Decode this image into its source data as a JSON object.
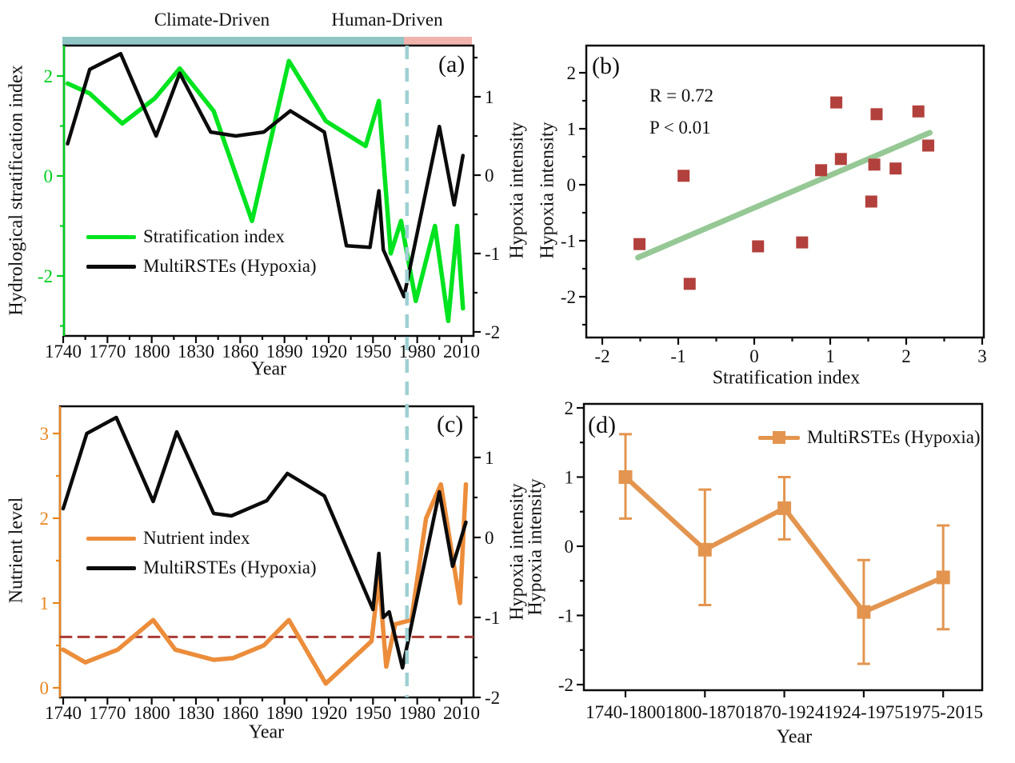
{
  "colors": {
    "green": "#00e31f",
    "black": "#0b0b0b",
    "orange": "#ec8d3b",
    "orange_d": "#e3954f",
    "brick": "#b2403c",
    "trend_green": "#96c896",
    "teal_bar": "#90c6c6",
    "pink_bar": "#f0b4ad",
    "teal_dash": "#9ed0d2",
    "dark_red_dash": "#a93a35",
    "axis_green": "#00cf1d",
    "axis_orange": "#e8861f"
  },
  "top_bars": {
    "climate_label": "Climate-Driven",
    "human_label": "Human-Driven"
  },
  "vline_year": 1973,
  "chart_data": [
    {
      "panel": "a",
      "type": "line",
      "panel_letter": "(a)",
      "xlabel": "Year",
      "ylabel_left": "Hydrological stratification index",
      "ylabel_right": "Hypoxia intensity",
      "xlim": [
        1740,
        2018
      ],
      "ylim_left": [
        -3.2,
        2.6
      ],
      "ylim_right": [
        -2.0,
        1.65
      ],
      "xticks": [
        1740,
        1770,
        1800,
        1830,
        1860,
        1890,
        1920,
        1950,
        1980,
        2010
      ],
      "yticks_left": [
        2,
        0,
        -2
      ],
      "yticks_left_minor": [
        1,
        -1,
        -3
      ],
      "yticks_right": [
        1,
        0,
        -1,
        -2
      ],
      "yticks_right_minor": [
        1.5,
        0.5,
        -0.5,
        -1.5
      ],
      "legend_position": "center-left",
      "series": [
        {
          "name": "Stratification index",
          "axis": "left",
          "color_key": "green",
          "points": [
            [
              1743,
              1.85
            ],
            [
              1758,
              1.65
            ],
            [
              1780,
              1.05
            ],
            [
              1802,
              1.55
            ],
            [
              1819,
              2.15
            ],
            [
              1842,
              1.3
            ],
            [
              1868,
              -0.9
            ],
            [
              1893,
              2.3
            ],
            [
              1918,
              1.1
            ],
            [
              1945,
              0.6
            ],
            [
              1954,
              1.5
            ],
            [
              1962,
              -1.55
            ],
            [
              1969,
              -0.9
            ],
            [
              1979,
              -2.5
            ],
            [
              1992,
              -1.0
            ],
            [
              2001,
              -2.9
            ],
            [
              2007,
              -1.0
            ],
            [
              2011,
              -2.65
            ]
          ]
        },
        {
          "name": "MultiRSTEs (Hypoxia)",
          "axis": "right",
          "color_key": "black",
          "points": [
            [
              1743,
              0.4
            ],
            [
              1758,
              1.35
            ],
            [
              1779,
              1.55
            ],
            [
              1803,
              0.5
            ],
            [
              1819,
              1.3
            ],
            [
              1840,
              0.55
            ],
            [
              1857,
              0.5
            ],
            [
              1876,
              0.55
            ],
            [
              1894,
              0.82
            ],
            [
              1917,
              0.55
            ],
            [
              1932,
              -0.9
            ],
            [
              1948,
              -0.92
            ],
            [
              1954,
              -0.2
            ],
            [
              1957,
              -0.95
            ],
            [
              1971,
              -1.55
            ],
            [
              1995,
              0.62
            ],
            [
              2005,
              -0.38
            ],
            [
              2011,
              0.25
            ]
          ]
        }
      ]
    },
    {
      "panel": "b",
      "type": "scatter",
      "panel_letter": "(b)",
      "xlabel": "Stratification index",
      "ylabel": "Hypoxia intensity",
      "stats": [
        "R = 0.72",
        "P < 0.01"
      ],
      "xlim": [
        -2.2,
        3.02
      ],
      "ylim": [
        -2.72,
        2.49
      ],
      "xticks": [
        -2,
        -1,
        0,
        1,
        2,
        3
      ],
      "yticks": [
        2,
        1,
        0,
        -1,
        -2
      ],
      "points": [
        [
          -1.51,
          -1.06
        ],
        [
          -0.93,
          0.16
        ],
        [
          -0.85,
          -1.77
        ],
        [
          0.05,
          -1.1
        ],
        [
          0.63,
          -1.03
        ],
        [
          0.88,
          0.26
        ],
        [
          1.08,
          1.47
        ],
        [
          1.14,
          0.46
        ],
        [
          1.54,
          -0.3
        ],
        [
          1.58,
          0.36
        ],
        [
          1.61,
          1.26
        ],
        [
          1.86,
          0.29
        ],
        [
          2.16,
          1.31
        ],
        [
          2.29,
          0.7
        ]
      ],
      "trend_line": [
        [
          -1.53,
          -1.3
        ],
        [
          2.31,
          0.93
        ]
      ]
    },
    {
      "panel": "c",
      "type": "line",
      "panel_letter": "(c)",
      "xlabel": "Year",
      "ylabel_left": "Nutrient level",
      "ylabel_right": "Hypoxia intensity",
      "xlim": [
        1738,
        2018
      ],
      "ylim_left": [
        -0.1,
        3.3
      ],
      "ylim_right": [
        -2.0,
        1.64
      ],
      "xticks": [
        1740,
        1770,
        1800,
        1830,
        1860,
        1890,
        1920,
        1950,
        1980,
        2010
      ],
      "yticks_left": [
        3,
        2,
        1,
        0
      ],
      "yticks_left_minor": [
        2.5,
        1.5,
        0.5
      ],
      "yticks_right": [
        1,
        0,
        -1,
        -2
      ],
      "yticks_right_minor": [
        1.5,
        0.5,
        -0.5,
        -1.5
      ],
      "threshold_left": 0.6,
      "series": [
        {
          "name": "Nutrient index",
          "axis": "left",
          "color_key": "orange",
          "points": [
            [
              1740,
              0.45
            ],
            [
              1755,
              0.3
            ],
            [
              1777,
              0.45
            ],
            [
              1801,
              0.8
            ],
            [
              1816,
              0.45
            ],
            [
              1842,
              0.33
            ],
            [
              1855,
              0.35
            ],
            [
              1876,
              0.5
            ],
            [
              1893,
              0.8
            ],
            [
              1918,
              0.05
            ],
            [
              1949,
              0.55
            ],
            [
              1954,
              1.3
            ],
            [
              1959,
              0.25
            ],
            [
              1965,
              0.75
            ],
            [
              1976,
              0.8
            ],
            [
              1986,
              2.0
            ],
            [
              1996,
              2.4
            ],
            [
              2009,
              1.0
            ],
            [
              2013,
              2.4
            ]
          ]
        },
        {
          "name": "MultiRSTEs (Hypoxia)",
          "axis": "right",
          "color_key": "black",
          "points": [
            [
              1740,
              0.36
            ],
            [
              1756,
              1.3
            ],
            [
              1776,
              1.5
            ],
            [
              1801,
              0.45
            ],
            [
              1817,
              1.32
            ],
            [
              1842,
              0.3
            ],
            [
              1854,
              0.27
            ],
            [
              1878,
              0.46
            ],
            [
              1892,
              0.8
            ],
            [
              1917,
              0.52
            ],
            [
              1950,
              -0.9
            ],
            [
              1954,
              -0.2
            ],
            [
              1957,
              -1.0
            ],
            [
              1961,
              -0.93
            ],
            [
              1970,
              -1.63
            ],
            [
              1995,
              0.57
            ],
            [
              2004,
              -0.36
            ],
            [
              2013,
              0.19
            ]
          ]
        }
      ]
    },
    {
      "panel": "d",
      "type": "errorbar",
      "panel_letter": "(d)",
      "xlabel": "Year",
      "ylabel": "Hypoxia intensity",
      "categories": [
        "1740-1800",
        "1800-1870",
        "1870-1924",
        "1924-1975",
        "1975-2015"
      ],
      "values": [
        1.0,
        -0.05,
        0.55,
        -0.95,
        -0.45
      ],
      "err_upper": [
        1.62,
        0.82,
        1.0,
        -0.2,
        0.3
      ],
      "err_lower": [
        0.4,
        -0.85,
        0.1,
        -1.7,
        -1.2
      ],
      "ylim": [
        -2.0,
        2.06
      ],
      "yticks": [
        2,
        1,
        0,
        -1,
        -2
      ],
      "yticks_minor": [
        1.5,
        0.5,
        -0.5,
        -1.5
      ],
      "legend": [
        "MultiRSTEs (Hypoxia)"
      ]
    }
  ]
}
